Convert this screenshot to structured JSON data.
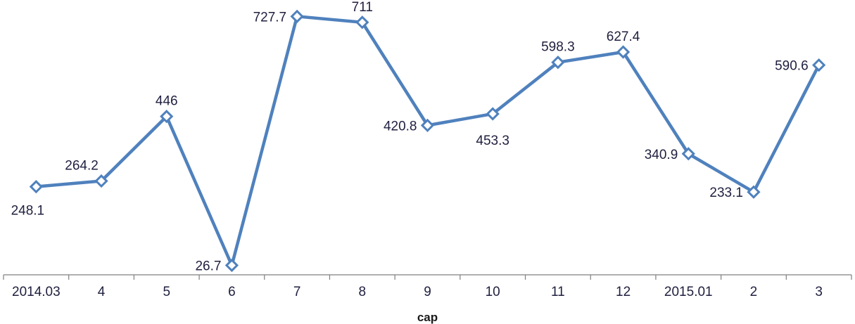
{
  "chart_data": {
    "type": "line",
    "categories": [
      "2014.03",
      "4",
      "5",
      "6",
      "7",
      "8",
      "9",
      "10",
      "11",
      "12",
      "2015.01",
      "2",
      "3"
    ],
    "series": [
      {
        "values": [
          248.1,
          264.2,
          446,
          26.7,
          727.7,
          711,
          420.8,
          453.3,
          598.3,
          627.4,
          340.9,
          233.1,
          590.6
        ],
        "data_labels": [
          "248.1",
          "264.2",
          "446",
          "26.7",
          "727.7",
          "711",
          "420.8",
          "453.3",
          "598.3",
          "627.4",
          "340.9",
          "233.1",
          "590.6"
        ],
        "color": "#4f81bd",
        "marker": "diamond-open"
      }
    ],
    "title": "",
    "xlabel": "cap",
    "ylabel": "",
    "ylim": [
      0,
      760
    ],
    "grid": false,
    "legend": "none"
  }
}
